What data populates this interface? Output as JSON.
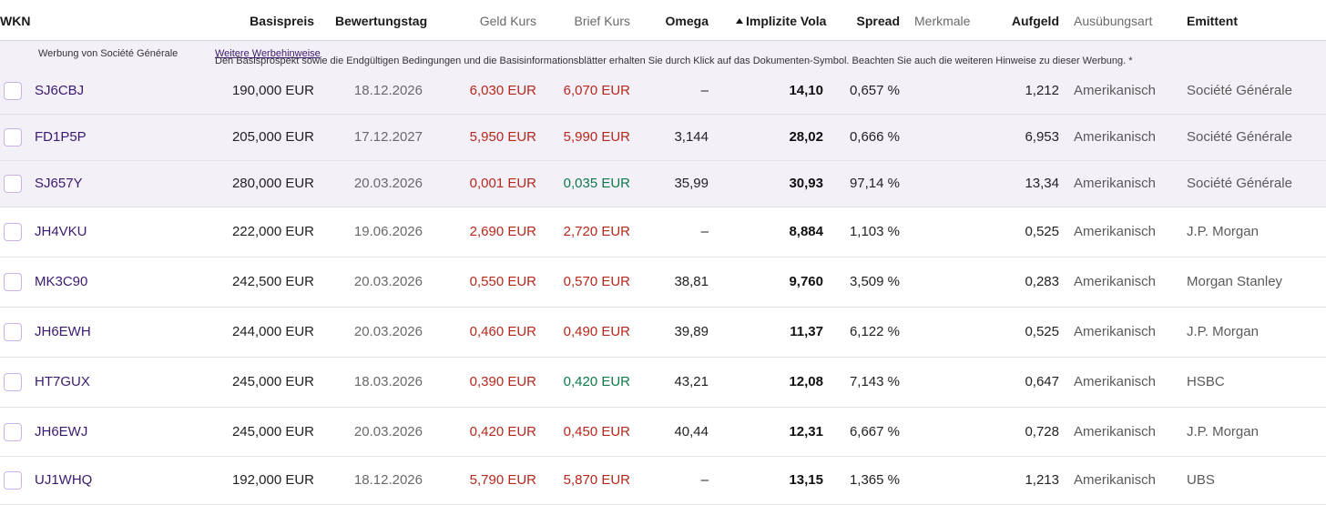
{
  "header": {
    "wkn": "WKN",
    "basispreis": "Basispreis",
    "bewertungstag": "Bewertungstag",
    "geld_kurs": "Geld Kurs",
    "brief_kurs": "Brief Kurs",
    "omega": "Omega",
    "implizite_vola": "Implizite Vola",
    "spread": "Spread",
    "merkmale": "Merkmale",
    "aufgeld": "Aufgeld",
    "ausuebungsart": "Ausübungsart",
    "emittent": "Emittent"
  },
  "ad_banner": {
    "label": "Werbung von Société Générale",
    "text": "Den Basisprospekt sowie die Endgültigen Bedingungen und die Basisinformationsblätter erhalten Sie durch Klick auf das Dokumenten-Symbol. Beachten Sie auch die weiteren Hinweise zu dieser Werbung. *",
    "link": "Weitere Werbehinweise"
  },
  "colors": {
    "accent": "#3a1a6e",
    "bid": "#b5281d",
    "ask_up": "#0e7a4a",
    "sponsored_bg": "#f4f0f8"
  },
  "rows": [
    {
      "wkn": "SJ6CBJ",
      "basispreis": "190,000 EUR",
      "bewertungstag": "18.12.2026",
      "geld": "6,030 EUR",
      "brief": "6,070 EUR",
      "brief_trend": "down",
      "omega": "–",
      "vola": "14,10",
      "spread": "0,657 %",
      "aufgeld": "1,212",
      "art": "Amerikanisch",
      "emittent": "Société Générale"
    },
    {
      "wkn": "FD1P5P",
      "basispreis": "205,000 EUR",
      "bewertungstag": "17.12.2027",
      "geld": "5,950 EUR",
      "brief": "5,990 EUR",
      "brief_trend": "down",
      "omega": "3,144",
      "vola": "28,02",
      "spread": "0,666 %",
      "aufgeld": "6,953",
      "art": "Amerikanisch",
      "emittent": "Société Générale"
    },
    {
      "wkn": "SJ657Y",
      "basispreis": "280,000 EUR",
      "bewertungstag": "20.03.2026",
      "geld": "0,001 EUR",
      "brief": "0,035 EUR",
      "brief_trend": "up",
      "omega": "35,99",
      "vola": "30,93",
      "spread": "97,14 %",
      "aufgeld": "13,34",
      "art": "Amerikanisch",
      "emittent": "Société Générale"
    },
    {
      "wkn": "JH4VKU",
      "basispreis": "222,000 EUR",
      "bewertungstag": "19.06.2026",
      "geld": "2,690 EUR",
      "brief": "2,720 EUR",
      "brief_trend": "down",
      "omega": "–",
      "vola": "8,884",
      "spread": "1,103 %",
      "aufgeld": "0,525",
      "art": "Amerikanisch",
      "emittent": "J.P. Morgan"
    },
    {
      "wkn": "MK3C90",
      "basispreis": "242,500 EUR",
      "bewertungstag": "20.03.2026",
      "geld": "0,550 EUR",
      "brief": "0,570 EUR",
      "brief_trend": "down",
      "omega": "38,81",
      "vola": "9,760",
      "spread": "3,509 %",
      "aufgeld": "0,283",
      "art": "Amerikanisch",
      "emittent": "Morgan Stanley"
    },
    {
      "wkn": "JH6EWH",
      "basispreis": "244,000 EUR",
      "bewertungstag": "20.03.2026",
      "geld": "0,460 EUR",
      "brief": "0,490 EUR",
      "brief_trend": "down",
      "omega": "39,89",
      "vola": "11,37",
      "spread": "6,122 %",
      "aufgeld": "0,525",
      "art": "Amerikanisch",
      "emittent": "J.P. Morgan"
    },
    {
      "wkn": "HT7GUX",
      "basispreis": "245,000 EUR",
      "bewertungstag": "18.03.2026",
      "geld": "0,390 EUR",
      "brief": "0,420 EUR",
      "brief_trend": "up",
      "omega": "43,21",
      "vola": "12,08",
      "spread": "7,143 %",
      "aufgeld": "0,647",
      "art": "Amerikanisch",
      "emittent": "HSBC"
    },
    {
      "wkn": "JH6EWJ",
      "basispreis": "245,000 EUR",
      "bewertungstag": "20.03.2026",
      "geld": "0,420 EUR",
      "brief": "0,450 EUR",
      "brief_trend": "down",
      "omega": "40,44",
      "vola": "12,31",
      "spread": "6,667 %",
      "aufgeld": "0,728",
      "art": "Amerikanisch",
      "emittent": "J.P. Morgan"
    },
    {
      "wkn": "UJ1WHQ",
      "basispreis": "192,000 EUR",
      "bewertungstag": "18.12.2026",
      "geld": "5,790 EUR",
      "brief": "5,870 EUR",
      "brief_trend": "down",
      "omega": "–",
      "vola": "13,15",
      "spread": "1,365 %",
      "aufgeld": "1,213",
      "art": "Amerikanisch",
      "emittent": "UBS"
    }
  ]
}
